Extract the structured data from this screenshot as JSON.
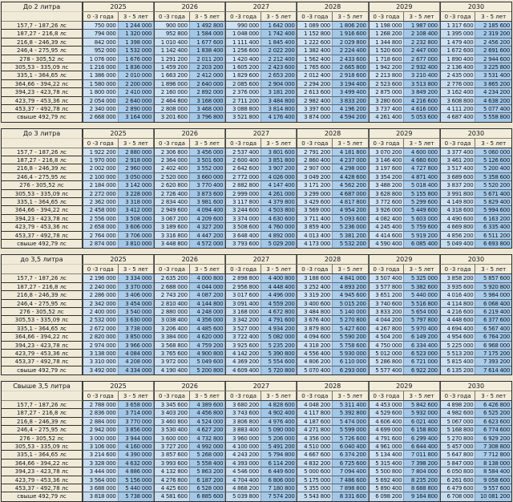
{
  "years": [
    "2025",
    "2026",
    "2027",
    "2028",
    "2029",
    "2030"
  ],
  "age_headers": [
    "0 -3 года",
    "3 - 5 лет"
  ],
  "blocks": [
    {
      "title": "До 2 литра",
      "rows": [
        {
          "label": "157,7 - 187,26 лс",
          "values": [
            "750 000",
            "1 244 000",
            "900 000",
            "1 492 800",
            "990 000",
            "1 642 000",
            "1 089 000",
            "1 806 200",
            "1 198 000",
            "1 987 000",
            "1 317 600",
            "2 185 600"
          ]
        },
        {
          "label": "187,27 - 216,8 лс",
          "values": [
            "794 000",
            "1 320 000",
            "952 800",
            "1 584 000",
            "1 048 000",
            "1 742 400",
            "1 152 800",
            "1 916 600",
            "1 268 200",
            "2 108 400",
            "1 395 000",
            "2 319 200"
          ]
        },
        {
          "label": "216,8 - 246,39 лс",
          "values": [
            "842 000",
            "1 398 000",
            "1 010 400",
            "1 677 600",
            "1 111 400",
            "1 845 400",
            "1 222 600",
            "2 029 800",
            "1 344 800",
            "2 232 800",
            "1 479 400",
            "2 456 200"
          ]
        },
        {
          "label": "246,4 - 275,95 лс",
          "values": [
            "952 000",
            "1 532 000",
            "1 142 400",
            "1 838 400",
            "1 256 600",
            "2 022 200",
            "1 382 400",
            "2 224 400",
            "1 520 600",
            "2 447 000",
            "1 672 600",
            "2 691 600"
          ]
        },
        {
          "label": "278 - 305,52 лс",
          "values": [
            "1 076 000",
            "1 676 000",
            "1 291 200",
            "2 011 200",
            "1 420 400",
            "2 212 400",
            "1 562 400",
            "2 433 600",
            "1 718 600",
            "2 677 000",
            "1 890 400",
            "2 944 600"
          ]
        },
        {
          "label": "305,53 - 335,09 лс",
          "values": [
            "1 216 000",
            "1 836 000",
            "1 459 200",
            "2 203 200",
            "1 605 200",
            "2 423 600",
            "1 765 600",
            "2 665 800",
            "1 942 200",
            "2 932 400",
            "2 136 400",
            "3 225 800"
          ]
        },
        {
          "label": "335,1 - 364,65 лс",
          "values": [
            "1 386 000",
            "2 010 000",
            "1 663 200",
            "2 412 000",
            "1 829 600",
            "2 653 200",
            "2 012 400",
            "2 918 600",
            "2 213 800",
            "3 210 400",
            "2 435 000",
            "3 531 400"
          ]
        },
        {
          "label": "364,66 - 394,22 лс",
          "values": [
            "1 580 000",
            "2 200 000",
            "1 896 000",
            "2 640 000",
            "2 085 600",
            "2 904 000",
            "2 294 200",
            "3 194 400",
            "2 523 600",
            "3 513 800",
            "2 776 000",
            "3 865 200"
          ]
        },
        {
          "label": "394,23 - 423,78 лс",
          "values": [
            "1 800 000",
            "2 410 000",
            "2 160 000",
            "2 892 000",
            "2 376 000",
            "3 181 200",
            "2 613 600",
            "3 499 400",
            "2 875 000",
            "3 849 200",
            "3 162 400",
            "4 234 200"
          ]
        },
        {
          "label": "423,79 - 453,36 лс",
          "values": [
            "2 054 000",
            "2 640 000",
            "2 464 800",
            "3 168 000",
            "2 711 200",
            "3 484 800",
            "2 982 400",
            "3 833 200",
            "3 280 600",
            "4 216 600",
            "3 608 800",
            "4 638 200"
          ]
        },
        {
          "label": "453,37 - 492,78 лс",
          "values": [
            "2 340 000",
            "2 890 000",
            "2 808 000",
            "3 468 000",
            "3 088 800",
            "3 814 800",
            "3 397 600",
            "4 196 200",
            "3 737 400",
            "4 616 000",
            "4 111 200",
            "5 077 400"
          ]
        },
        {
          "label": "свыше 492,79 лс",
          "values": [
            "2 668 000",
            "3 164 000",
            "3 201 600",
            "3 796 800",
            "3 521 800",
            "4 176 400",
            "3 874 000",
            "4 594 200",
            "4 261 400",
            "5 053 600",
            "4 687 400",
            "5 558 800"
          ]
        }
      ]
    },
    {
      "title": "До 3 литра",
      "rows": [
        {
          "label": "157,7 - 187,26 лс",
          "values": [
            "1 922 200",
            "2 880 000",
            "2 306 800",
            "3 456 000",
            "2 537 400",
            "3 801 600",
            "2 791 200",
            "4 181 800",
            "3 070 200",
            "4 600 000",
            "3 377 400",
            "5 060 000"
          ]
        },
        {
          "label": "187,27 - 216,8 лс",
          "values": [
            "1 970 000",
            "2 918 000",
            "2 364 000",
            "3 501 600",
            "2 600 400",
            "3 851 800",
            "2 860 400",
            "4 237 000",
            "3 146 400",
            "4 660 600",
            "3 461 200",
            "5 126 600"
          ]
        },
        {
          "label": "216,8 - 246,39 лс",
          "values": [
            "2 002 000",
            "2 960 000",
            "2 402 400",
            "3 552 000",
            "2 642 600",
            "3 907 200",
            "2 907 000",
            "4 298 000",
            "3 197 600",
            "4 727 800",
            "3 517 400",
            "5 200 400"
          ]
        },
        {
          "label": "246,4 - 275,95 лс",
          "values": [
            "2 100 000",
            "3 050 000",
            "2 520 000",
            "3 660 000",
            "2 772 000",
            "4 026 000",
            "3 049 200",
            "4 428 600",
            "3 354 200",
            "4 871 400",
            "3 689 600",
            "5 358 600"
          ]
        },
        {
          "label": "276 - 305,52 лс",
          "values": [
            "2 184 000",
            "3 142 000",
            "2 620 800",
            "3 770 400",
            "2 882 800",
            "4 147 400",
            "3 171 200",
            "4 562 200",
            "3 488 200",
            "5 018 400",
            "3 837 200",
            "5 520 200"
          ]
        },
        {
          "label": "305,53 - 335,09 лс",
          "values": [
            "2 272 000",
            "3 228 000",
            "2 726 400",
            "3 873 600",
            "2 999 000",
            "4 261 000",
            "3 299 000",
            "4 687 000",
            "3 628 800",
            "5 155 800",
            "3 991 800",
            "5 671 400"
          ]
        },
        {
          "label": "335,1 - 364,65 лс",
          "values": [
            "2 362 000",
            "3 318 000",
            "2 834 400",
            "3 981 600",
            "3 117 800",
            "4 379 800",
            "3 429 600",
            "4 817 800",
            "3 772 600",
            "5 299 600",
            "4 149 800",
            "5 829 400"
          ]
        },
        {
          "label": "364,66 - 394,22 лс",
          "values": [
            "2 458 000",
            "3 412 000",
            "2 949 600",
            "4 094 400",
            "3 244 600",
            "4 503 800",
            "3 569 000",
            "4 954 200",
            "3 926 000",
            "5 449 600",
            "4 318 600",
            "5 994 600"
          ]
        },
        {
          "label": "394,23 - 423,78 лс",
          "values": [
            "2 556 000",
            "3 508 000",
            "3 067 200",
            "4 209 600",
            "3 374 000",
            "4 630 600",
            "3 711 400",
            "5 093 600",
            "4 082 400",
            "5 603 000",
            "4 490 600",
            "6 163 200"
          ]
        },
        {
          "label": "423,79 - 453,36 лс",
          "values": [
            "2 658 000",
            "3 606 000",
            "3 189 600",
            "4 327 200",
            "3 508 600",
            "4 760 000",
            "3 859 400",
            "5 236 000",
            "4 245 400",
            "5 759 600",
            "4 669 800",
            "6 335 400"
          ]
        },
        {
          "label": "453,37 - 492,78 лс",
          "values": [
            "2 764 000",
            "3 706 000",
            "3 316 800",
            "4 447 200",
            "3 648 400",
            "4 892 000",
            "4 013 400",
            "5 381 200",
            "4 414 600",
            "5 919 200",
            "4 856 200",
            "6 511 200"
          ]
        },
        {
          "label": "свыше 492,79 лс",
          "values": [
            "2 874 000",
            "3 810 000",
            "3 448 800",
            "4 572 000",
            "3 793 600",
            "5 029 200",
            "4 173 000",
            "5 532 200",
            "4 590 400",
            "6 085 400",
            "5 049 400",
            "6 693 800"
          ]
        }
      ]
    },
    {
      "title": "до 3,5 литра",
      "rows": [
        {
          "label": "157,7 - 187,26 лс",
          "values": [
            "2 196 000",
            "3 334 000",
            "2 635 200",
            "4 000 800",
            "2 898 800",
            "4 400 800",
            "3 188 600",
            "4 841 000",
            "3 507 400",
            "5 325 000",
            "3 858 200",
            "5 857 600"
          ]
        },
        {
          "label": "187,27 - 216,8 лс",
          "values": [
            "2 240 000",
            "3 370 000",
            "2 688 000",
            "4 044 000",
            "2 956 800",
            "4 448 400",
            "3 252 400",
            "4 893 200",
            "3 577 800",
            "5 382 600",
            "3 935 600",
            "5 920 800"
          ]
        },
        {
          "label": "216,8 - 246,39 лс",
          "values": [
            "2 286 000",
            "3 406 000",
            "2 743 200",
            "4 087 200",
            "3 017 600",
            "4 496 000",
            "3 319 200",
            "4 945 600",
            "3 651 200",
            "5 440 000",
            "4 016 400",
            "5 984 000"
          ]
        },
        {
          "label": "246,4 - 275,95 лс",
          "values": [
            "2 342 000",
            "3 454 000",
            "2 810 400",
            "4 144 800",
            "3 091 400",
            "4 559 200",
            "3 400 600",
            "5 015 200",
            "3 740 600",
            "5 516 800",
            "4 114 800",
            "6 068 400"
          ]
        },
        {
          "label": "276 - 305,52 лс",
          "values": [
            "2 400 000",
            "3 540 000",
            "2 880 000",
            "4 248 000",
            "3 168 000",
            "4 672 800",
            "3 484 800",
            "5 140 000",
            "3 833 200",
            "5 654 000",
            "4 216 600",
            "6 219 400"
          ]
        },
        {
          "label": "305,53 - 335,09 лс",
          "values": [
            "2 532 000",
            "3 630 000",
            "3 038 400",
            "4 356 000",
            "3 342 200",
            "4 791 600",
            "3 676 400",
            "5 270 800",
            "4 044 200",
            "5 797 800",
            "4 448 600",
            "6 377 600"
          ]
        },
        {
          "label": "335,1 - 364,65 лс",
          "values": [
            "2 672 000",
            "3 738 000",
            "3 206 400",
            "4 485 600",
            "3 527 000",
            "4 934 200",
            "3 879 800",
            "5 427 600",
            "4 267 800",
            "5 970 400",
            "4 694 400",
            "6 567 400"
          ]
        },
        {
          "label": "364,66 - 394,22 лс",
          "values": [
            "2 820 000",
            "3 850 000",
            "3 384 000",
            "4 620 000",
            "3 722 400",
            "5 082 000",
            "4 094 600",
            "5 590 200",
            "4 504 200",
            "6 149 200",
            "4 954 600",
            "6 764 200"
          ]
        },
        {
          "label": "394,23 - 423,78 лс",
          "values": [
            "2 974 000",
            "3 966 000",
            "3 568 800",
            "4 759 200",
            "3 925 600",
            "5 235 200",
            "4 318 200",
            "5 758 600",
            "4 750 000",
            "6 334 400",
            "5 225 000",
            "6 968 000"
          ]
        },
        {
          "label": "423,79 - 453,36 лс",
          "values": [
            "3 138 000",
            "4 084 000",
            "3 765 600",
            "4 900 800",
            "4 142 200",
            "5 390 800",
            "4 556 400",
            "5 930 000",
            "5 012 000",
            "6 523 000",
            "5 513 200",
            "7 175 200"
          ]
        },
        {
          "label": "453,37 - 492,78 лс",
          "values": [
            "3 310 000",
            "4 208 000",
            "3 972 000",
            "5 049 600",
            "4 369 200",
            "5 554 600",
            "4 806 200",
            "6 110 000",
            "5 286 800",
            "6 721 000",
            "5 815 400",
            "7 393 200"
          ]
        },
        {
          "label": "свыше 492,79 лс",
          "values": [
            "3 492 000",
            "4 334 000",
            "4 190 400",
            "5 200 800",
            "4 609 400",
            "5 720 800",
            "5 070 400",
            "6 293 000",
            "5 577 400",
            "6 922 200",
            "6 135 200",
            "7 614 400"
          ]
        }
      ]
    },
    {
      "title": "Свыше 3,5 литра",
      "rows": [
        {
          "label": "157,7 - 187,26 лс",
          "values": [
            "2 788 000",
            "3 658 000",
            "3 345 600",
            "4 389 600",
            "3 680 200",
            "4 828 600",
            "4 048 200",
            "5 311 400",
            "4 453 000",
            "5 842 600",
            "4 898 200",
            "6 426 800"
          ]
        },
        {
          "label": "187,27 - 216,8 лс",
          "values": [
            "2 836 000",
            "3 714 000",
            "3 403 200",
            "4 456 800",
            "3 743 600",
            "4 902 400",
            "4 117 800",
            "5 392 800",
            "4 529 600",
            "5 932 000",
            "4 982 600",
            "6 525 200"
          ]
        },
        {
          "label": "216,8 - 246,39 лс",
          "values": [
            "2 884 000",
            "3 770 000",
            "3 460 800",
            "4 524 000",
            "3 806 800",
            "4 976 400",
            "4 187 600",
            "5 474 000",
            "4 606 400",
            "6 021 400",
            "5 067 000",
            "6 623 600"
          ]
        },
        {
          "label": "246,4 - 275,95 лс",
          "values": [
            "2 942 000",
            "3 856 000",
            "3 530 400",
            "4 627 200",
            "3 883 400",
            "5 090 000",
            "4 271 800",
            "5 599 000",
            "4 699 000",
            "6 158 800",
            "5 168 800",
            "6 774 600"
          ]
        },
        {
          "label": "276 - 305,52 лс",
          "values": [
            "3 000 000",
            "3 944 000",
            "3 600 000",
            "4 732 800",
            "3 960 000",
            "5 206 000",
            "4 356 000",
            "5 726 600",
            "4 791 600",
            "6 299 400",
            "5 270 800",
            "6 929 200"
          ]
        },
        {
          "label": "305,53 - 335,09 лс",
          "values": [
            "3 106 000",
            "4 160 000",
            "3 727 200",
            "4 992 000",
            "4 100 000",
            "5 491 200",
            "4 510 000",
            "6 040 400",
            "4 961 000",
            "6 644 400",
            "5 457 000",
            "7 308 800"
          ]
        },
        {
          "label": "335,1 - 364,65 лс",
          "values": [
            "3 214 600",
            "4 390 000",
            "3 857 600",
            "5 268 000",
            "4 243 200",
            "5 794 800",
            "4 667 600",
            "6 374 200",
            "5 134 400",
            "7 011 800",
            "5 647 800",
            "7 712 800"
          ]
        },
        {
          "label": "364,66 - 394,22 лс",
          "values": [
            "3 328 000",
            "4 632 000",
            "3 993 600",
            "5 558 400",
            "4 393 000",
            "6 114 200",
            "4 832 200",
            "6 725 600",
            "5 315 400",
            "7 398 200",
            "5 847 000",
            "8 138 000"
          ]
        },
        {
          "label": "394,23 - 423,78 лс",
          "values": [
            "3 444 000",
            "4 886 000",
            "4 132 800",
            "5 863 200",
            "4 546 000",
            "6 449 600",
            "5 000 600",
            "7 094 400",
            "5 500 800",
            "7 804 000",
            "6 050 800",
            "8 584 400"
          ]
        },
        {
          "label": "423,79 - 453,36 лс",
          "values": [
            "3 564 000",
            "5 156 000",
            "4 276 800",
            "6 187 200",
            "4 704 400",
            "6 806 000",
            "5 175 000",
            "7 486 600",
            "5 692 400",
            "8 235 200",
            "6 261 600",
            "9 058 600"
          ]
        },
        {
          "label": "453,37 - 492,78 лс",
          "values": [
            "3 688 000",
            "5 440 000",
            "4 425 600",
            "6 528 000",
            "4 868 200",
            "7 180 800",
            "5 355 000",
            "7 898 800",
            "5 890 400",
            "8 688 800",
            "6 479 600",
            "9 557 600"
          ]
        },
        {
          "label": "свыше 492,79 лс",
          "values": [
            "3 818 000",
            "5 738 000",
            "4 581 600",
            "6 885 600",
            "5 039 800",
            "7 574 200",
            "5 543 800",
            "8 331 600",
            "6 098 200",
            "9 164 800",
            "6 708 000",
            "10 081 200"
          ]
        }
      ]
    }
  ],
  "colors": {
    "page_bg": "#ebe5d2",
    "header_bg": "#f2ecda",
    "col_0_3_bg": "#c6dcef",
    "col_3_5_bg": "#a2c7e7",
    "grid_line": "#5d6670",
    "heavy_line": "#2c2c2c"
  }
}
